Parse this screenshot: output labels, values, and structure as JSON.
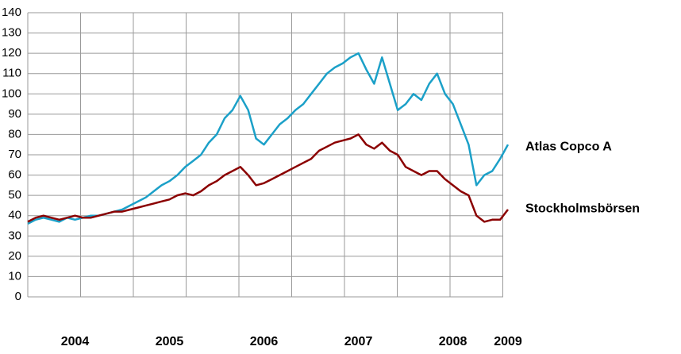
{
  "chart_data": {
    "type": "line",
    "categories": [
      null,
      null,
      null,
      null,
      null,
      null,
      "2004",
      null,
      null,
      null,
      null,
      null,
      null,
      null,
      null,
      null,
      null,
      null,
      "2005",
      null,
      null,
      null,
      null,
      null,
      null,
      null,
      null,
      null,
      null,
      null,
      "2006",
      null,
      null,
      null,
      null,
      null,
      null,
      null,
      null,
      null,
      null,
      null,
      "2007",
      null,
      null,
      null,
      null,
      null,
      null,
      null,
      null,
      null,
      null,
      null,
      "2008",
      null,
      null,
      null,
      null,
      null,
      null,
      "2009"
    ],
    "series": [
      {
        "name": "Atlas Copco A",
        "color": "#1ba0c8",
        "values": [
          36,
          38,
          39,
          38,
          37,
          39,
          38,
          39,
          40,
          40,
          41,
          42,
          43,
          45,
          47,
          49,
          52,
          55,
          57,
          60,
          64,
          67,
          70,
          76,
          80,
          88,
          92,
          99,
          92,
          78,
          75,
          80,
          85,
          88,
          92,
          95,
          100,
          105,
          110,
          113,
          115,
          118,
          120,
          112,
          105,
          118,
          105,
          92,
          95,
          100,
          97,
          105,
          110,
          100,
          95,
          85,
          75,
          55,
          60,
          62,
          68,
          75
        ]
      },
      {
        "name": "Stockholmsbörsen",
        "color": "#8b0000",
        "values": [
          37,
          39,
          40,
          39,
          38,
          39,
          40,
          39,
          39,
          40,
          41,
          42,
          42,
          43,
          44,
          45,
          46,
          47,
          48,
          50,
          51,
          50,
          52,
          55,
          57,
          60,
          62,
          64,
          60,
          55,
          56,
          58,
          60,
          62,
          64,
          66,
          68,
          72,
          74,
          76,
          77,
          78,
          80,
          75,
          73,
          76,
          72,
          70,
          64,
          62,
          60,
          62,
          62,
          58,
          55,
          52,
          50,
          40,
          37,
          38,
          38,
          43
        ]
      }
    ],
    "ylim": [
      0,
      140
    ],
    "yticks": [
      0,
      10,
      20,
      30,
      40,
      50,
      60,
      70,
      80,
      90,
      100,
      110,
      120,
      130,
      140
    ],
    "grid": true
  }
}
